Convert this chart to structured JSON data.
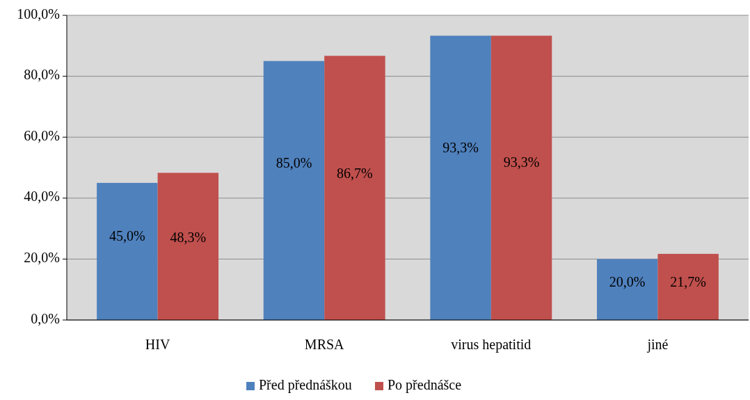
{
  "chart_data": {
    "type": "bar",
    "categories": [
      "HIV",
      "MRSA",
      "virus hepatitid",
      "jiné"
    ],
    "series": [
      {
        "name": "Před přednáškou",
        "color": "#4f81bd",
        "values": [
          45.0,
          85.0,
          93.3,
          20.0
        ],
        "value_labels": [
          "45,0%",
          "85,0%",
          "93,3%",
          "20,0%"
        ]
      },
      {
        "name": "Po přednášce",
        "color": "#c0504d",
        "values": [
          48.3,
          86.7,
          93.3,
          21.7
        ],
        "value_labels": [
          "48,3%",
          "86,7%",
          "93,3%",
          "21,7%"
        ]
      }
    ],
    "ylim": [
      0,
      100
    ],
    "yticks": [
      {
        "value": 0,
        "label": "0,0%"
      },
      {
        "value": 20,
        "label": "20,0%"
      },
      {
        "value": 40,
        "label": "40,0%"
      },
      {
        "value": 60,
        "label": "60,0%"
      },
      {
        "value": 80,
        "label": "80,0%"
      },
      {
        "value": 100,
        "label": "100,0%"
      }
    ],
    "grid": "y",
    "legend": "bottom"
  }
}
